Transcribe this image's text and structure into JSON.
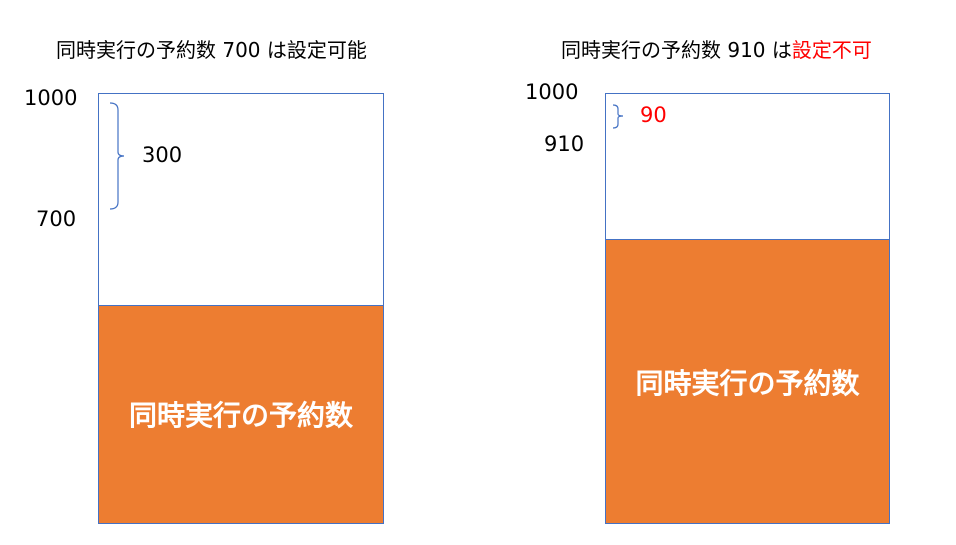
{
  "left": {
    "title_prefix": "同時実行の予約数 700 は",
    "title_status": "設定可能",
    "max_label": "1000",
    "level_label": "700",
    "gap_label": "300",
    "bar_label": "同時実行の予約数",
    "max_value": 1000,
    "reserved_value": 700
  },
  "right": {
    "title_prefix": "同時実行の予約数 910 は",
    "title_status": "設定不可",
    "max_label": "1000",
    "level_label": "910",
    "gap_label": "90",
    "bar_label": "同時実行の予約数",
    "max_value": 1000,
    "reserved_value": 910
  },
  "colors": {
    "fill": "#ed7d31",
    "border": "#4472c4",
    "error": "#ff0000"
  }
}
